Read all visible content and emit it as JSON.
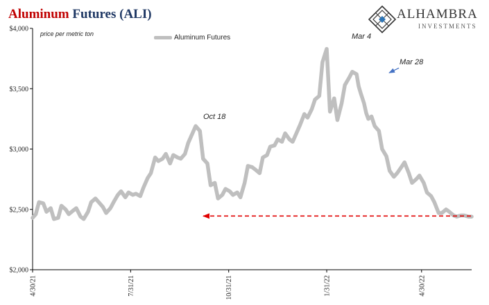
{
  "title": {
    "part1": "Aluminum",
    "part2": " Futures (ALI)"
  },
  "brand": {
    "name": "ALHAMBRA",
    "sub": "INVESTMENTS",
    "logo_icon": "diamond-lattice-icon"
  },
  "units_note": "price per metric ton",
  "legend": {
    "label": "Aluminum Futures"
  },
  "annotations": {
    "oct18": "Oct 18",
    "mar4": "Mar 4",
    "mar28": "Mar 28"
  },
  "colors": {
    "series": "#bfbfbf",
    "reference_line": "#e00000",
    "title_red": "#c00000",
    "title_blue": "#1f3864",
    "arrow_blue": "#4472c4"
  },
  "chart_data": {
    "type": "line",
    "title": "Aluminum Futures (ALI)",
    "ylabel": "price per metric ton",
    "ylim": [
      2000,
      4000
    ],
    "yticks": [
      "$2,000",
      "$2,500",
      "$3,000",
      "$3,500",
      "$4,000"
    ],
    "ytick_values": [
      2000,
      2500,
      3000,
      3500,
      4000
    ],
    "xlim": [
      "2021-04-30",
      "2022-06-16"
    ],
    "xticks": [
      "4/30/21",
      "7/31/21",
      "10/31/21",
      "1/31/22",
      "4/30/22"
    ],
    "xtick_dates": [
      "2021-04-30",
      "2021-07-31",
      "2021-10-31",
      "2022-01-31",
      "2022-04-30"
    ],
    "grid": false,
    "legend_position": "top-left",
    "series": [
      {
        "name": "Aluminum Futures",
        "x": [
          "2021-04-30",
          "2021-05-03",
          "2021-05-06",
          "2021-05-10",
          "2021-05-13",
          "2021-05-17",
          "2021-05-20",
          "2021-05-24",
          "2021-05-27",
          "2021-05-31",
          "2021-06-03",
          "2021-06-07",
          "2021-06-10",
          "2021-06-14",
          "2021-06-17",
          "2021-06-21",
          "2021-06-24",
          "2021-06-28",
          "2021-07-01",
          "2021-07-05",
          "2021-07-08",
          "2021-07-12",
          "2021-07-15",
          "2021-07-19",
          "2021-07-22",
          "2021-07-26",
          "2021-07-29",
          "2021-08-02",
          "2021-08-05",
          "2021-08-09",
          "2021-08-12",
          "2021-08-16",
          "2021-08-19",
          "2021-08-23",
          "2021-08-26",
          "2021-08-30",
          "2021-09-02",
          "2021-09-06",
          "2021-09-09",
          "2021-09-13",
          "2021-09-16",
          "2021-09-20",
          "2021-09-23",
          "2021-09-27",
          "2021-09-30",
          "2021-10-04",
          "2021-10-07",
          "2021-10-11",
          "2021-10-14",
          "2021-10-18",
          "2021-10-21",
          "2021-10-25",
          "2021-10-28",
          "2021-11-01",
          "2021-11-04",
          "2021-11-08",
          "2021-11-11",
          "2021-11-15",
          "2021-11-18",
          "2021-11-22",
          "2021-11-25",
          "2021-11-29",
          "2021-12-02",
          "2021-12-06",
          "2021-12-09",
          "2021-12-13",
          "2021-12-16",
          "2021-12-20",
          "2021-12-23",
          "2021-12-27",
          "2021-12-30",
          "2022-01-03",
          "2022-01-06",
          "2022-01-10",
          "2022-01-13",
          "2022-01-17",
          "2022-01-20",
          "2022-01-24",
          "2022-01-27",
          "2022-01-31",
          "2022-02-03",
          "2022-02-07",
          "2022-02-10",
          "2022-02-14",
          "2022-02-17",
          "2022-02-21",
          "2022-02-24",
          "2022-02-28",
          "2022-03-02",
          "2022-03-04",
          "2022-03-07",
          "2022-03-09",
          "2022-03-11",
          "2022-03-14",
          "2022-03-17",
          "2022-03-21",
          "2022-03-24",
          "2022-03-28",
          "2022-03-31",
          "2022-04-04",
          "2022-04-07",
          "2022-04-11",
          "2022-04-14",
          "2022-04-18",
          "2022-04-21",
          "2022-04-25",
          "2022-04-28",
          "2022-05-02",
          "2022-05-05",
          "2022-05-09",
          "2022-05-12",
          "2022-05-16",
          "2022-05-19",
          "2022-05-23",
          "2022-05-26",
          "2022-05-30",
          "2022-06-02",
          "2022-06-06",
          "2022-06-09",
          "2022-06-13",
          "2022-06-16"
        ],
        "y": [
          2430,
          2460,
          2560,
          2550,
          2480,
          2510,
          2420,
          2430,
          2530,
          2500,
          2460,
          2490,
          2510,
          2440,
          2420,
          2480,
          2560,
          2590,
          2560,
          2520,
          2470,
          2510,
          2560,
          2620,
          2650,
          2600,
          2640,
          2620,
          2630,
          2610,
          2680,
          2760,
          2800,
          2930,
          2900,
          2920,
          2960,
          2880,
          2950,
          2930,
          2920,
          2960,
          3050,
          3130,
          3190,
          3150,
          2920,
          2880,
          2700,
          2720,
          2590,
          2620,
          2670,
          2650,
          2620,
          2640,
          2600,
          2720,
          2860,
          2850,
          2830,
          2800,
          2930,
          2950,
          3020,
          3030,
          3080,
          3060,
          3130,
          3080,
          3060,
          3140,
          3200,
          3290,
          3260,
          3330,
          3410,
          3440,
          3720,
          3830,
          3310,
          3420,
          3240,
          3380,
          3530,
          3590,
          3640,
          3620,
          3520,
          3460,
          3380,
          3300,
          3250,
          3270,
          3190,
          3150,
          3000,
          2940,
          2820,
          2770,
          2800,
          2850,
          2890,
          2800,
          2720,
          2750,
          2780,
          2720,
          2640,
          2610,
          2560,
          2470,
          2470,
          2500,
          2480,
          2450,
          2440,
          2450,
          2450,
          2440,
          2440
        ]
      }
    ],
    "reference_line": {
      "value": 2445
    },
    "annotations": [
      {
        "label": "Oct 18",
        "x": "2021-10-18",
        "y": 3200
      },
      {
        "label": "Mar 4",
        "x": "2022-03-04",
        "y": 3860
      },
      {
        "label": "Mar 28",
        "x": "2022-03-28",
        "y": 3620
      }
    ]
  }
}
